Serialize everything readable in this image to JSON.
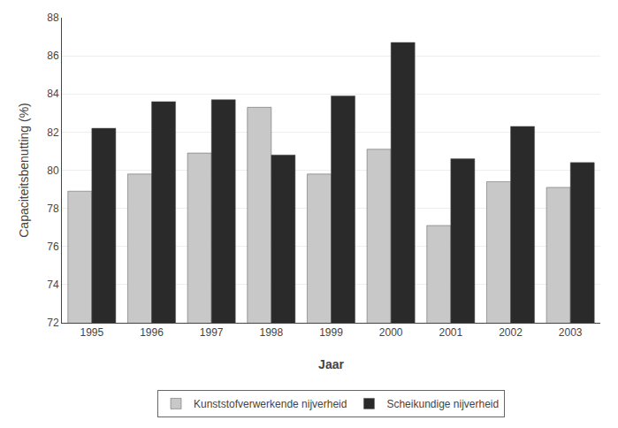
{
  "chart_data": {
    "type": "bar",
    "categories": [
      "1995",
      "1996",
      "1997",
      "1998",
      "1999",
      "2000",
      "2001",
      "2002",
      "2003"
    ],
    "series": [
      {
        "name": "Kunststofverwerkende nijverheid",
        "color": "#c8c8c8",
        "values": [
          78.9,
          79.8,
          80.9,
          83.3,
          79.8,
          81.1,
          77.1,
          79.4,
          79.1
        ]
      },
      {
        "name": "Scheikundige nijverheid",
        "color": "#2a2a2a",
        "values": [
          82.2,
          83.6,
          83.7,
          80.8,
          83.9,
          86.7,
          80.6,
          82.3,
          80.4
        ]
      }
    ],
    "xlabel": "Jaar",
    "ylabel": "Capaciteitsbenutting (%)",
    "ylim": [
      72,
      88
    ],
    "yticks": [
      72,
      74,
      76,
      78,
      80,
      82,
      84,
      86,
      88
    ],
    "grid": true,
    "legend": "bottom"
  }
}
